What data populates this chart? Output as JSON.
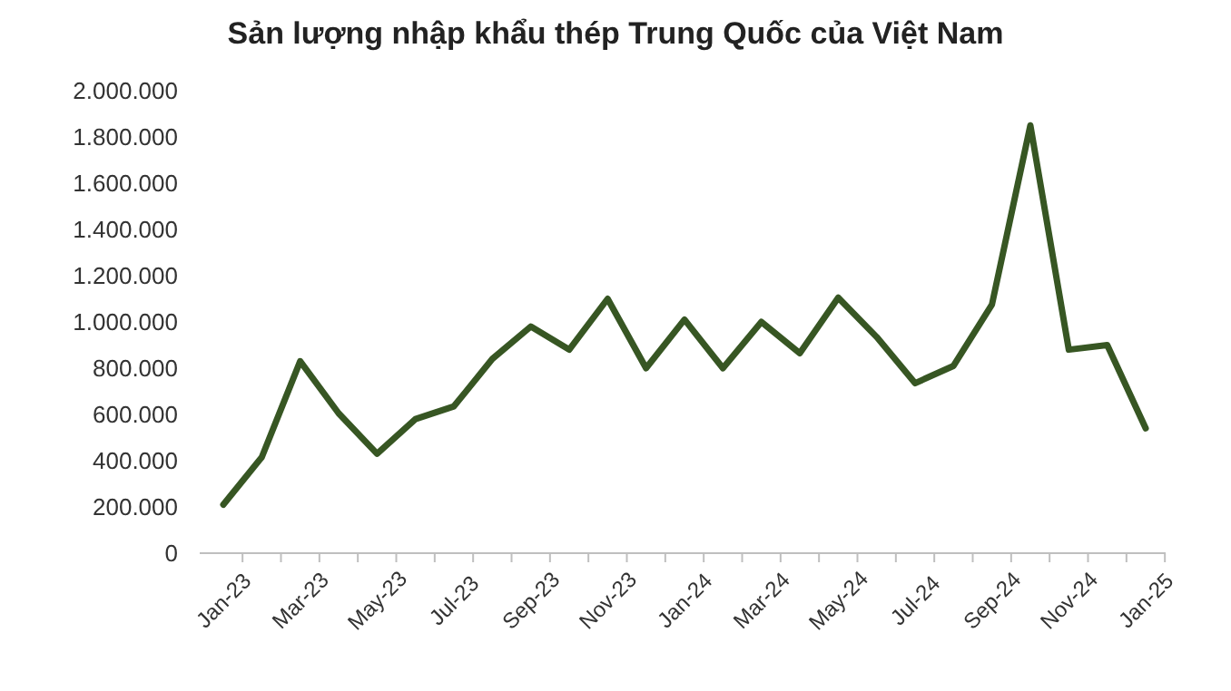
{
  "chart_data": {
    "type": "line",
    "title": "Sản lượng nhập khẩu thép Trung Quốc của Việt Nam",
    "categories": [
      "Jan-23",
      null,
      "Mar-23",
      null,
      "May-23",
      null,
      "Jul-23",
      null,
      "Sep-23",
      null,
      "Nov-23",
      null,
      "Jan-24",
      null,
      "Mar-24",
      null,
      "May-24",
      null,
      "Jul-24",
      null,
      "Sep-24",
      null,
      "Nov-24",
      null,
      "Jan-25"
    ],
    "series": [
      {
        "color": "#375623",
        "values": [
          210000,
          415000,
          830000,
          605000,
          430000,
          580000,
          635000,
          840000,
          980000,
          880000,
          1100000,
          800000,
          1010000,
          800000,
          1000000,
          865000,
          1105000,
          935000,
          735000,
          810000,
          1075000,
          1850000,
          880000,
          900000,
          540000
        ]
      }
    ],
    "ylim": [
      0,
      2000000
    ],
    "yticks": [
      {
        "value": 0,
        "label": "0"
      },
      {
        "value": 200000,
        "label": "200.000"
      },
      {
        "value": 400000,
        "label": "400.000"
      },
      {
        "value": 600000,
        "label": "600.000"
      },
      {
        "value": 800000,
        "label": "800.000"
      },
      {
        "value": 1000000,
        "label": "1.000.000"
      },
      {
        "value": 1200000,
        "label": "1.200.000"
      },
      {
        "value": 1400000,
        "label": "1.400.000"
      },
      {
        "value": 1600000,
        "label": "1.600.000"
      },
      {
        "value": 1800000,
        "label": "1.800.000"
      },
      {
        "value": 2000000,
        "label": "2.000.000"
      }
    ],
    "grid": false,
    "marker": "none",
    "line_style": "solid"
  }
}
